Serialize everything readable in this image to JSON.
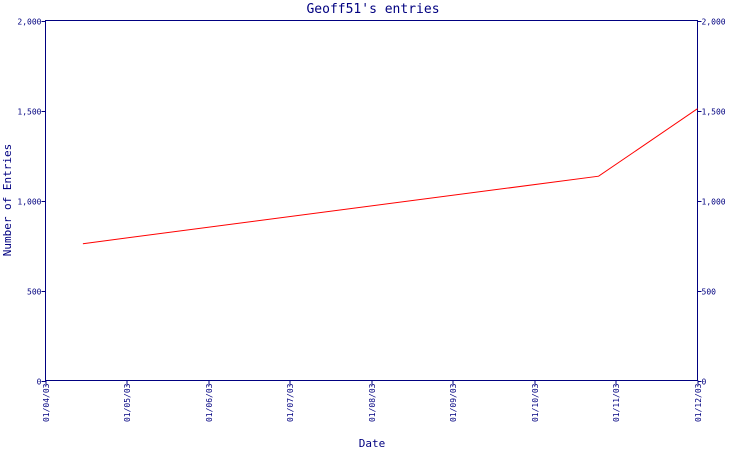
{
  "chart_data": {
    "type": "line",
    "title": "Geoff51's entries",
    "xlabel": "Date",
    "ylabel": "Number of Entries",
    "x_ticks": [
      "01/04/03",
      "01/05/03",
      "01/06/03",
      "01/07/03",
      "01/08/03",
      "01/09/03",
      "01/10/03",
      "01/11/03",
      "01/12/03"
    ],
    "y_ticks": [
      "0",
      "500",
      "1,000",
      "1,500",
      "2,000"
    ],
    "y_tick_values": [
      0,
      500,
      1000,
      1500,
      2000
    ],
    "ylim": [
      0,
      2000
    ],
    "xlim": [
      "2003-04-01",
      "2003-12-01"
    ],
    "grid": false,
    "colors": {
      "axis": "#000080",
      "series": "#ff0000",
      "background": "#ffffff"
    },
    "series": [
      {
        "x": [
          "2003-04-15",
          "2003-10-25",
          "2003-12-01"
        ],
        "values": [
          760,
          1135,
          1510
        ]
      }
    ]
  }
}
